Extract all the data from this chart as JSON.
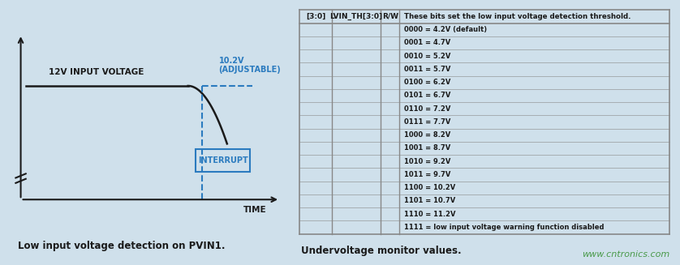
{
  "bg_color": "#cfe0eb",
  "fig_width": 8.38,
  "fig_height": 3.27,
  "left_panel_title": "Low input voltage detection on PVIN1.",
  "right_panel_title": "Undervoltage monitor values.",
  "watermark": "www.cntronics.com",
  "signal_label": "12V INPUT VOLTAGE",
  "adjustable_label": "10.2V\n(ADJUSTABLE)",
  "interrupt_label": "INTERRUPT",
  "time_label": "TIME",
  "blue_color": "#2B7BBF",
  "table_headers": [
    "[3:0]",
    "LVIN_TH[3:0]",
    "R/W"
  ],
  "table_col4_header": "These bits set the low input voltage detection threshold.",
  "table_rows": [
    "0000 = 4.2V (default)",
    "0001 = 4.7V",
    "0010 = 5.2V",
    "0011 = 5.7V",
    "0100 = 6.2V",
    "0101 = 6.7V",
    "0110 = 7.2V",
    "0111 = 7.7V",
    "1000 = 8.2V",
    "1001 = 8.7V",
    "1010 = 9.2V",
    "1011 = 9.7V",
    "1100 = 10.2V",
    "1101 = 10.7V",
    "1110 = 11.2V",
    "1111 = low input voltage warning function disabled"
  ],
  "line_color": "#1a1a1a",
  "grid_color": "#888888",
  "watermark_color": "#4a9a4a"
}
